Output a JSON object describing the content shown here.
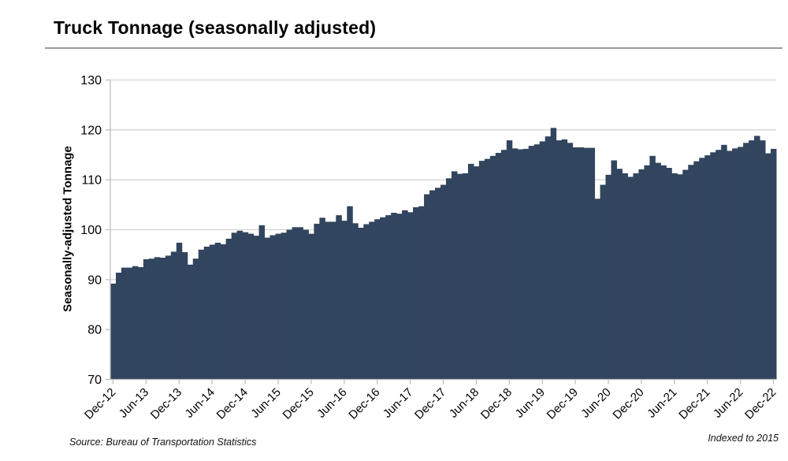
{
  "header": {
    "title": "Truck Tonnage (seasonally adjusted)"
  },
  "footer": {
    "source": "Source: Bureau of Transportation Statistics",
    "note": "Indexed to 2015"
  },
  "chart_data": {
    "type": "bar",
    "title": "Truck Tonnage (seasonally adjusted)",
    "xlabel": "",
    "ylabel": "Seasonally-adjusted Tonnage",
    "ylim": [
      70,
      130
    ],
    "y_ticks": [
      70,
      80,
      90,
      100,
      110,
      120,
      130
    ],
    "grid": true,
    "legend": "none",
    "bar_color": "#32455e",
    "grid_color": "#d6d6d6",
    "axis_color": "#bfbfbf",
    "x_tick_every": 6,
    "x_tick_labels": [
      "Dec-12",
      "Jun-13",
      "Dec-13",
      "Jun-14",
      "Dec-14",
      "Jun-15",
      "Dec-15",
      "Jun-16",
      "Dec-16",
      "Jun-17",
      "Dec-17",
      "Jun-18",
      "Dec-18",
      "Jun-19",
      "Dec-19",
      "Jun-20",
      "Dec-20",
      "Jun-21",
      "Dec-21",
      "Jun-22",
      "Dec-22"
    ],
    "months": [
      "Dec-12",
      "Jan-13",
      "Feb-13",
      "Mar-13",
      "Apr-13",
      "May-13",
      "Jun-13",
      "Jul-13",
      "Aug-13",
      "Sep-13",
      "Oct-13",
      "Nov-13",
      "Dec-13",
      "Jan-14",
      "Feb-14",
      "Mar-14",
      "Apr-14",
      "May-14",
      "Jun-14",
      "Jul-14",
      "Aug-14",
      "Sep-14",
      "Oct-14",
      "Nov-14",
      "Dec-14",
      "Jan-15",
      "Feb-15",
      "Mar-15",
      "Apr-15",
      "May-15",
      "Jun-15",
      "Jul-15",
      "Aug-15",
      "Sep-15",
      "Oct-15",
      "Nov-15",
      "Dec-15",
      "Jan-16",
      "Feb-16",
      "Mar-16",
      "Apr-16",
      "May-16",
      "Jun-16",
      "Jul-16",
      "Aug-16",
      "Sep-16",
      "Oct-16",
      "Nov-16",
      "Dec-16",
      "Jan-17",
      "Feb-17",
      "Mar-17",
      "Apr-17",
      "May-17",
      "Jun-17",
      "Jul-17",
      "Aug-17",
      "Sep-17",
      "Oct-17",
      "Nov-17",
      "Dec-17",
      "Jan-18",
      "Feb-18",
      "Mar-18",
      "Apr-18",
      "May-18",
      "Jun-18",
      "Jul-18",
      "Aug-18",
      "Sep-18",
      "Oct-18",
      "Nov-18",
      "Dec-18",
      "Jan-19",
      "Feb-19",
      "Mar-19",
      "Apr-19",
      "May-19",
      "Jun-19",
      "Jul-19",
      "Aug-19",
      "Sep-19",
      "Oct-19",
      "Nov-19",
      "Dec-19",
      "Jan-20",
      "Feb-20",
      "Mar-20",
      "Apr-20",
      "May-20",
      "Jun-20",
      "Jul-20",
      "Aug-20",
      "Sep-20",
      "Oct-20",
      "Nov-20",
      "Dec-20",
      "Jan-21",
      "Feb-21",
      "Mar-21",
      "Apr-21",
      "May-21",
      "Jun-21",
      "Jul-21",
      "Aug-21",
      "Sep-21",
      "Oct-21",
      "Nov-21",
      "Dec-21",
      "Jan-22",
      "Feb-22",
      "Mar-22",
      "Apr-22",
      "May-22",
      "Jun-22",
      "Jul-22",
      "Aug-22",
      "Sep-22",
      "Oct-22",
      "Nov-22",
      "Dec-22"
    ],
    "values": [
      89.2,
      91.4,
      92.4,
      92.4,
      92.7,
      92.5,
      94.1,
      94.2,
      94.5,
      94.4,
      94.8,
      95.6,
      97.4,
      95.5,
      93.0,
      94.2,
      96.0,
      96.6,
      97.0,
      97.4,
      97.1,
      98.2,
      99.4,
      99.8,
      99.5,
      99.2,
      98.8,
      100.9,
      98.4,
      98.9,
      99.2,
      99.4,
      100.0,
      100.5,
      100.5,
      100.0,
      99.2,
      101.2,
      102.4,
      101.6,
      101.6,
      102.9,
      101.8,
      104.7,
      101.3,
      100.4,
      101.1,
      101.6,
      102.1,
      102.5,
      102.9,
      103.4,
      103.2,
      103.9,
      103.5,
      104.5,
      104.7,
      107.1,
      107.9,
      108.4,
      109.0,
      110.3,
      111.7,
      111.2,
      111.3,
      113.2,
      112.7,
      113.8,
      114.2,
      114.8,
      115.4,
      116.0,
      117.9,
      116.3,
      116.1,
      116.2,
      116.8,
      117.1,
      117.7,
      118.7,
      120.4,
      117.9,
      118.1,
      117.4,
      116.5,
      116.5,
      116.4,
      116.4,
      106.2,
      109.0,
      111.0,
      113.9,
      112.2,
      111.3,
      110.6,
      111.3,
      112.1,
      112.9,
      114.8,
      113.4,
      112.9,
      112.4,
      111.3,
      111.1,
      112.0,
      113.0,
      113.7,
      114.4,
      114.9,
      115.5,
      116.0,
      117.0,
      115.8,
      116.3,
      116.6,
      117.4,
      117.9,
      118.8,
      117.9,
      115.3,
      116.2
    ]
  }
}
